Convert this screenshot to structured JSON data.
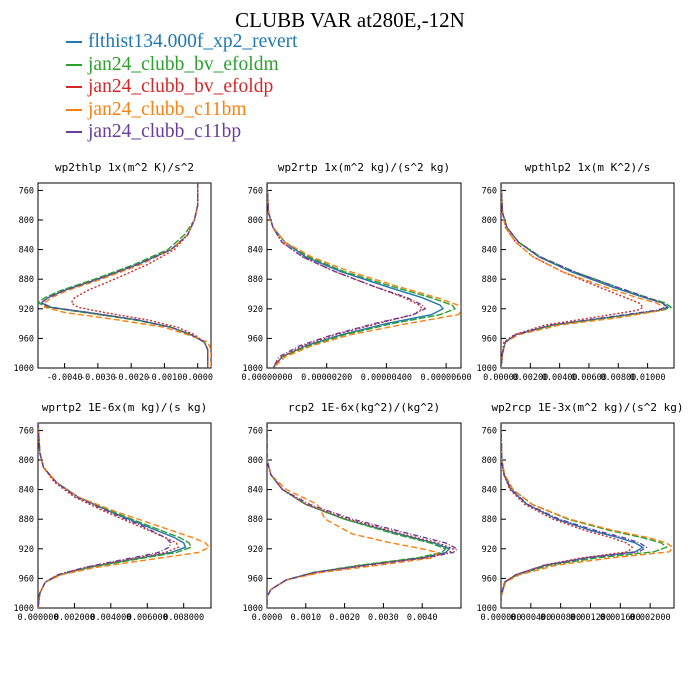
{
  "title": "CLUBB VAR at280E,-12N",
  "legend": [
    {
      "name": "flthist134.000f_xp2_revert",
      "color": "#1f77b4"
    },
    {
      "name": "jan24_clubb_bv_efoldm",
      "color": "#2ca02c"
    },
    {
      "name": "jan24_clubb_bv_efoldp",
      "color": "#d62728"
    },
    {
      "name": "jan24_clubb_c11bm",
      "color": "#ff7f0e"
    },
    {
      "name": "jan24_clubb_c11bp",
      "color": "#6a3d9a"
    }
  ],
  "chart_data": [
    {
      "type": "line",
      "title": "wp2thlp  1x(m^2 K)/s^2",
      "xlim": [
        -0.0048,
        0.0004
      ],
      "ylim": [
        1000,
        750
      ],
      "xticks": [
        -0.004,
        -0.003,
        -0.002,
        -0.001,
        0.0
      ],
      "xtick_labels": [
        "-0.0040",
        "-0.0030",
        "-0.0020",
        "-0.0010",
        "0.0000"
      ],
      "yticks": [
        760,
        800,
        840,
        880,
        920,
        960,
        1000
      ],
      "y": [
        750,
        780,
        800,
        820,
        840,
        860,
        880,
        895,
        905,
        912,
        918,
        925,
        935,
        945,
        955,
        965,
        975,
        985,
        1000
      ],
      "series": [
        {
          "name": "flthist134.000f_xp2_revert",
          "values": [
            0.0,
            0.0,
            -0.0001,
            -0.0003,
            -0.0008,
            -0.0018,
            -0.003,
            -0.004,
            -0.0045,
            -0.0047,
            -0.0044,
            -0.0033,
            -0.0018,
            -0.0008,
            -0.0002,
            0.0002,
            0.0003,
            0.0003,
            0.0003
          ]
        },
        {
          "name": "jan24_clubb_bv_efoldm",
          "values": [
            0.0,
            0.0,
            -0.0001,
            -0.0004,
            -0.0009,
            -0.0019,
            -0.0031,
            -0.0041,
            -0.0046,
            -0.0048,
            -0.0045,
            -0.0034,
            -0.0019,
            -0.0008,
            -0.0002,
            0.0002,
            0.0003,
            0.0003,
            0.0003
          ]
        },
        {
          "name": "jan24_clubb_bv_efoldp",
          "values": [
            0.0,
            0.0,
            -0.0001,
            -0.0003,
            -0.0007,
            -0.0015,
            -0.0025,
            -0.0033,
            -0.0037,
            -0.0038,
            -0.0036,
            -0.0028,
            -0.0015,
            -0.0006,
            -0.0001,
            0.0002,
            0.0003,
            0.0003,
            0.0003
          ]
        },
        {
          "name": "jan24_clubb_c11bm",
          "values": [
            0.0,
            0.0,
            -0.0001,
            -0.0003,
            -0.0008,
            -0.0017,
            -0.0029,
            -0.0039,
            -0.0044,
            -0.0046,
            -0.0046,
            -0.004,
            -0.0024,
            -0.001,
            -0.0003,
            0.0003,
            0.0004,
            0.0004,
            0.0004
          ]
        },
        {
          "name": "jan24_clubb_c11bp",
          "values": [
            0.0,
            0.0,
            -0.0001,
            -0.0003,
            -0.0008,
            -0.0018,
            -0.003,
            -0.004,
            -0.0045,
            -0.0047,
            -0.0044,
            -0.0033,
            -0.0018,
            -0.0008,
            -0.0002,
            0.0002,
            0.0003,
            0.0003,
            0.0003
          ]
        }
      ]
    },
    {
      "type": "line",
      "title": "wp2rtp  1x(m^2 kg)/(s^2 kg)",
      "xlim": [
        0,
        6.5e-06
      ],
      "ylim": [
        1000,
        750
      ],
      "xticks": [
        0,
        2e-06,
        4e-06,
        6e-06
      ],
      "xtick_labels": [
        "0.00000000",
        "0.00000200",
        "0.00000400",
        "0.00000600"
      ],
      "yticks": [
        760,
        800,
        840,
        880,
        920,
        960,
        1000
      ],
      "y": [
        750,
        790,
        810,
        830,
        850,
        870,
        890,
        905,
        915,
        920,
        928,
        940,
        955,
        970,
        985,
        1000
      ],
      "series": [
        {
          "name": "flthist134.000f_xp2_revert",
          "values": [
            0.0,
            5e-08,
            2e-07,
            6e-07,
            1.3e-06,
            2.5e-06,
            4e-06,
            5.2e-06,
            5.8e-06,
            5.9e-06,
            5.5e-06,
            4e-06,
            2.5e-06,
            1.3e-06,
            5e-07,
            2e-07
          ]
        },
        {
          "name": "jan24_clubb_bv_efoldm",
          "values": [
            0.0,
            5e-08,
            2e-07,
            6e-07,
            1.4e-06,
            2.6e-06,
            4.2e-06,
            5.5e-06,
            6.2e-06,
            6.3e-06,
            5.8e-06,
            4.2e-06,
            2.6e-06,
            1.4e-06,
            5e-07,
            2e-07
          ]
        },
        {
          "name": "jan24_clubb_bv_efoldp",
          "values": [
            0.0,
            5e-08,
            2e-07,
            5e-07,
            1.2e-06,
            2.3e-06,
            3.6e-06,
            4.6e-06,
            5.1e-06,
            5.2e-06,
            4.9e-06,
            3.7e-06,
            2.3e-06,
            1.2e-06,
            5e-07,
            2e-07
          ]
        },
        {
          "name": "jan24_clubb_c11bm",
          "values": [
            0.0,
            5e-08,
            2e-07,
            6e-07,
            1.5e-06,
            2.8e-06,
            4.4e-06,
            5.7e-06,
            6.4e-06,
            6.6e-06,
            6.4e-06,
            4.7e-06,
            2.8e-06,
            1.5e-06,
            6e-07,
            2e-07
          ]
        },
        {
          "name": "jan24_clubb_c11bp",
          "values": [
            0.0,
            5e-08,
            2e-07,
            5e-07,
            1.2e-06,
            2.3e-06,
            3.6e-06,
            4.7e-06,
            5.2e-06,
            5.3e-06,
            4.9e-06,
            3.6e-06,
            2.2e-06,
            1.1e-06,
            4e-07,
            2e-07
          ]
        }
      ]
    },
    {
      "type": "line",
      "title": "wpthlp2  1x(m K^2)/s",
      "xlim": [
        0,
        0.0118
      ],
      "ylim": [
        1000,
        750
      ],
      "xticks": [
        0,
        0.002,
        0.004,
        0.006,
        0.008,
        0.01
      ],
      "xtick_labels": [
        "0.00000",
        "0.00200",
        "0.00400",
        "0.00600",
        "0.00800",
        "0.01000"
      ],
      "yticks": [
        760,
        800,
        840,
        880,
        920,
        960,
        1000
      ],
      "y": [
        750,
        790,
        810,
        830,
        850,
        870,
        890,
        905,
        912,
        918,
        922,
        932,
        942,
        955,
        965,
        980,
        1000
      ],
      "series": [
        {
          "name": "flthist134.000f_xp2_revert",
          "values": [
            0.0,
            0.0001,
            0.0004,
            0.0012,
            0.0026,
            0.0048,
            0.0075,
            0.0098,
            0.011,
            0.0114,
            0.0108,
            0.0072,
            0.0035,
            0.001,
            0.0003,
            0.0001,
            0.0
          ]
        },
        {
          "name": "jan24_clubb_bv_efoldm",
          "values": [
            0.0,
            0.0001,
            0.0004,
            0.0012,
            0.0027,
            0.005,
            0.0078,
            0.01,
            0.0112,
            0.0116,
            0.011,
            0.0074,
            0.0036,
            0.001,
            0.0003,
            0.0001,
            0.0
          ]
        },
        {
          "name": "jan24_clubb_bv_efoldp",
          "values": [
            0.0,
            0.0001,
            0.0003,
            0.001,
            0.0022,
            0.0042,
            0.0066,
            0.0085,
            0.0094,
            0.0097,
            0.0093,
            0.0062,
            0.003,
            0.0009,
            0.0002,
            0.0001,
            0.0
          ]
        },
        {
          "name": "jan24_clubb_c11bm",
          "values": [
            0.0,
            0.0001,
            0.0003,
            0.001,
            0.0022,
            0.0042,
            0.007,
            0.0093,
            0.0106,
            0.0111,
            0.011,
            0.008,
            0.004,
            0.0012,
            0.0003,
            0.0001,
            0.0
          ]
        },
        {
          "name": "jan24_clubb_c11bp",
          "values": [
            0.0,
            0.0001,
            0.0004,
            0.0012,
            0.0027,
            0.005,
            0.0078,
            0.01,
            0.011,
            0.0113,
            0.0106,
            0.007,
            0.0034,
            0.001,
            0.0003,
            0.0001,
            0.0
          ]
        }
      ]
    },
    {
      "type": "line",
      "title": "wprtp2  1E-6x(m kg)/(s kg)",
      "xlim": [
        0,
        0.0095
      ],
      "ylim": [
        1000,
        750
      ],
      "xticks": [
        0,
        0.002,
        0.004,
        0.006,
        0.008
      ],
      "xtick_labels": [
        "0.000000",
        "0.002000",
        "0.004000",
        "0.006000",
        "0.008000"
      ],
      "yticks": [
        760,
        800,
        840,
        880,
        920,
        960,
        1000
      ],
      "y": [
        750,
        790,
        810,
        830,
        850,
        870,
        890,
        905,
        912,
        918,
        925,
        935,
        945,
        955,
        965,
        980,
        1000
      ],
      "series": [
        {
          "name": "flthist134.000f_xp2_revert",
          "values": [
            0.0,
            0.0001,
            0.0003,
            0.001,
            0.0022,
            0.004,
            0.006,
            0.0075,
            0.008,
            0.0081,
            0.0073,
            0.005,
            0.0028,
            0.0012,
            0.0004,
            0.0001,
            0.0
          ]
        },
        {
          "name": "jan24_clubb_bv_efoldm",
          "values": [
            0.0,
            0.0001,
            0.0003,
            0.001,
            0.0022,
            0.0041,
            0.0062,
            0.0078,
            0.0083,
            0.0084,
            0.0076,
            0.0052,
            0.0029,
            0.0012,
            0.0004,
            0.0001,
            0.0
          ]
        },
        {
          "name": "jan24_clubb_bv_efoldp",
          "values": [
            0.0,
            0.0001,
            0.0003,
            0.0009,
            0.002,
            0.0037,
            0.0056,
            0.007,
            0.0076,
            0.0077,
            0.007,
            0.0048,
            0.0026,
            0.0011,
            0.0004,
            0.0001,
            0.0
          ]
        },
        {
          "name": "jan24_clubb_c11bm",
          "values": [
            0.0,
            0.0001,
            0.0003,
            0.001,
            0.0022,
            0.0043,
            0.0067,
            0.0085,
            0.0092,
            0.0094,
            0.0088,
            0.006,
            0.0032,
            0.0013,
            0.0004,
            0.0001,
            0.0
          ]
        },
        {
          "name": "jan24_clubb_c11bp",
          "values": [
            0.0,
            0.0001,
            0.0003,
            0.001,
            0.0021,
            0.0039,
            0.0058,
            0.007,
            0.0073,
            0.0072,
            0.0066,
            0.0046,
            0.0026,
            0.0011,
            0.0004,
            0.0001,
            0.0
          ]
        }
      ]
    },
    {
      "type": "line",
      "title": "rcp2  1E-6x(kg^2)/(kg^2)",
      "xlim": [
        0,
        0.005
      ],
      "ylim": [
        1000,
        750
      ],
      "xticks": [
        0,
        0.001,
        0.002,
        0.003,
        0.004
      ],
      "xtick_labels": [
        "0.0000",
        "0.0010",
        "0.0020",
        "0.0030",
        "0.0040"
      ],
      "yticks": [
        760,
        800,
        840,
        880,
        920,
        960,
        1000
      ],
      "y": [
        750,
        800,
        820,
        840,
        860,
        880,
        900,
        912,
        920,
        925,
        932,
        942,
        952,
        962,
        975,
        985,
        1000
      ],
      "series": [
        {
          "name": "flthist134.000f_xp2_revert",
          "values": [
            0.0,
            0.0,
            0.0001,
            0.0004,
            0.001,
            0.002,
            0.0034,
            0.0043,
            0.0047,
            0.0046,
            0.004,
            0.0025,
            0.0012,
            0.0005,
            0.0001,
            0.0,
            0.0
          ]
        },
        {
          "name": "jan24_clubb_bv_efoldm",
          "values": [
            0.0,
            0.0,
            0.0001,
            0.0004,
            0.001,
            0.002,
            0.0033,
            0.0042,
            0.0046,
            0.0045,
            0.0039,
            0.0024,
            0.0012,
            0.0005,
            0.0001,
            0.0,
            0.0
          ]
        },
        {
          "name": "jan24_clubb_bv_efoldp",
          "values": [
            0.0,
            0.0,
            0.0001,
            0.0004,
            0.001,
            0.0021,
            0.0035,
            0.0044,
            0.0048,
            0.0047,
            0.0041,
            0.0026,
            0.0013,
            0.0005,
            0.0001,
            0.0,
            0.0
          ]
        },
        {
          "name": "jan24_clubb_c11bm",
          "values": [
            0.0,
            0.0,
            0.0001,
            0.0005,
            0.0013,
            0.0015,
            0.0022,
            0.0032,
            0.004,
            0.0044,
            0.0043,
            0.0029,
            0.0014,
            0.0005,
            0.0001,
            0.0,
            0.0
          ]
        },
        {
          "name": "jan24_clubb_c11bp",
          "values": [
            0.0,
            0.0,
            0.0001,
            0.0004,
            0.0011,
            0.0022,
            0.0037,
            0.0046,
            0.0049,
            0.0048,
            0.0041,
            0.0026,
            0.0012,
            0.0005,
            0.0001,
            0.0,
            0.0
          ]
        }
      ]
    },
    {
      "type": "line",
      "title": "wp2rcp  1E-3x(m^2 kg)/(s^2 kg)",
      "xlim": [
        0,
        0.00232
      ],
      "ylim": [
        1000,
        750
      ],
      "xticks": [
        0,
        0.0004,
        0.0008,
        0.0012,
        0.0016,
        0.002
      ],
      "xtick_labels": [
        "0.000000",
        "0.000400",
        "0.000800",
        "0.001200",
        "0.001600",
        "0.002000"
      ],
      "yticks": [
        760,
        800,
        840,
        880,
        920,
        960,
        1000
      ],
      "y": [
        750,
        800,
        820,
        840,
        860,
        880,
        895,
        905,
        912,
        918,
        924,
        932,
        942,
        955,
        965,
        985,
        1000
      ],
      "series": [
        {
          "name": "flthist134.000f_xp2_revert",
          "values": [
            0.0,
            1e-05,
            4e-05,
            0.00013,
            0.00035,
            0.00075,
            0.0012,
            0.00158,
            0.0018,
            0.0019,
            0.0018,
            0.00115,
            0.0006,
            0.0002,
            5e-05,
            0.0,
            0.0
          ]
        },
        {
          "name": "jan24_clubb_bv_efoldm",
          "values": [
            0.0,
            1e-05,
            5e-05,
            0.00016,
            0.00042,
            0.0009,
            0.00145,
            0.0019,
            0.00215,
            0.00222,
            0.00205,
            0.0013,
            0.00066,
            0.00022,
            5e-05,
            0.0,
            0.0
          ]
        },
        {
          "name": "jan24_clubb_bv_efoldp",
          "values": [
            0.0,
            1e-05,
            4e-05,
            0.00012,
            0.00032,
            0.0007,
            0.00112,
            0.00148,
            0.00168,
            0.00176,
            0.0017,
            0.0011,
            0.00058,
            0.0002,
            5e-05,
            0.0,
            0.0
          ]
        },
        {
          "name": "jan24_clubb_c11bm",
          "values": [
            0.0,
            1e-05,
            5e-05,
            0.00016,
            0.00042,
            0.00092,
            0.0015,
            0.00198,
            0.00222,
            0.0023,
            0.00226,
            0.0015,
            0.00075,
            0.00025,
            6e-05,
            0.0,
            0.0
          ]
        },
        {
          "name": "jan24_clubb_c11bp",
          "values": [
            0.0,
            1e-05,
            4e-05,
            0.00014,
            0.00036,
            0.00078,
            0.00126,
            0.00165,
            0.00186,
            0.00195,
            0.00185,
            0.00118,
            0.0006,
            0.0002,
            5e-05,
            0.0,
            0.0
          ]
        }
      ]
    }
  ]
}
